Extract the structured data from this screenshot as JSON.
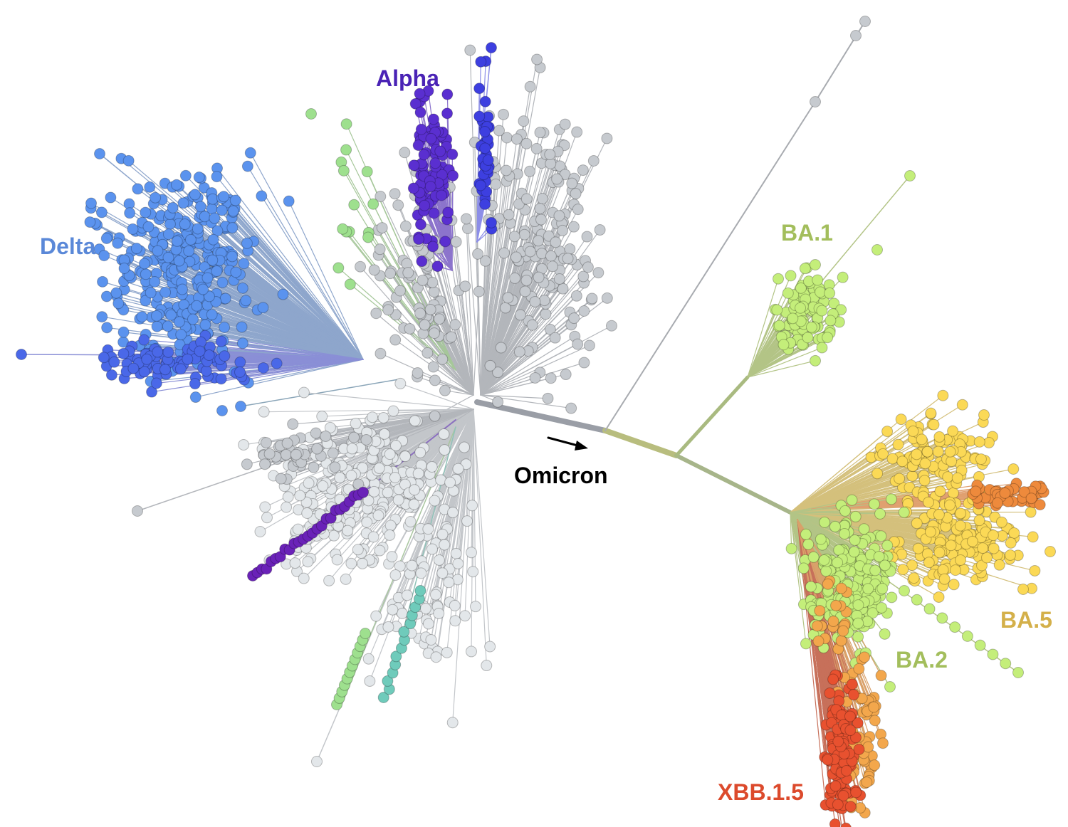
{
  "labels": {
    "alpha": "Alpha",
    "delta": "Delta",
    "ba1": "BA.1",
    "ba2": "BA.2",
    "ba5": "BA.5",
    "xbb": "XBB.1.5",
    "omicron": "Omicron"
  },
  "colors": {
    "alpha": "#4a23b5",
    "alpha_nodes": "#5a2fd0",
    "alpha2_nodes": "#3d3fe0",
    "delta": "#5a88d8",
    "delta_nodes": "#5b93ee",
    "delta2_nodes": "#4a68e8",
    "ba1": "#a3be5c",
    "ba1_nodes": "#c4ee7a",
    "ba2": "#a3be5c",
    "ba5": "#d4b04a",
    "ba5_nodes": "#fbd956",
    "ba5_orange": "#ee8a3c",
    "xbb": "#dc4a2c",
    "xbb_nodes": "#e8512f",
    "xbb_orange": "#f3a74c",
    "gray_nodes": "#c6cacf",
    "light_nodes": "#e3e7ea",
    "branch_gray": "#a8abb0",
    "teal_nodes": "#6fcbbb",
    "green_nodes": "#9ee08e",
    "purple_nodes": "#6a22b8",
    "omicron": "#000000"
  }
}
